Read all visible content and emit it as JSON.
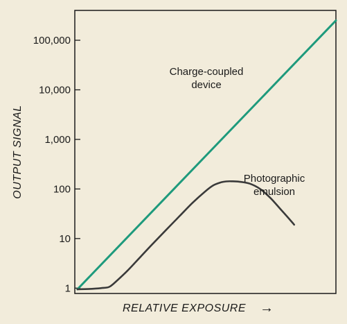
{
  "colors": {
    "background": "#f2ecdb",
    "frame": "#1a1a1a",
    "ccd_line": "#1e9a7c",
    "emulsion_line": "#3a3a3a"
  },
  "chart_data": {
    "type": "line",
    "title": "",
    "xlabel": "RELATIVE EXPOSURE",
    "xlabel_arrow": "→",
    "ylabel": "OUTPUT SIGNAL",
    "y_scale": "log",
    "ylim": [
      0.78,
      400000
    ],
    "xlim": [
      0,
      100
    ],
    "grid": false,
    "legend": "none",
    "y_ticks": [
      {
        "value": 1,
        "label": "1"
      },
      {
        "value": 10,
        "label": "10"
      },
      {
        "value": 100,
        "label": "100"
      },
      {
        "value": 1000,
        "label": "1,000"
      },
      {
        "value": 10000,
        "label": "10,000"
      },
      {
        "value": 100000,
        "label": "100,000"
      }
    ],
    "series": [
      {
        "label": "Charge-coupled\ndevice",
        "color": "#1e9a7c",
        "points": [
          [
            1,
            0.95
          ],
          [
            100,
            250000
          ]
        ]
      },
      {
        "label": "Photographic\nemulsion",
        "color": "#3a3a3a",
        "points": [
          [
            1,
            0.95
          ],
          [
            5,
            0.96
          ],
          [
            10,
            1.0
          ],
          [
            13,
            1.05
          ],
          [
            15,
            1.25
          ],
          [
            20,
            2.2
          ],
          [
            25,
            4.2
          ],
          [
            30,
            8.0
          ],
          [
            35,
            15
          ],
          [
            40,
            28
          ],
          [
            45,
            52
          ],
          [
            50,
            90
          ],
          [
            53,
            118
          ],
          [
            56,
            136
          ],
          [
            58,
            142
          ],
          [
            60,
            143
          ],
          [
            63,
            140
          ],
          [
            67,
            128
          ],
          [
            71,
            100
          ],
          [
            75,
            65
          ],
          [
            79,
            38
          ],
          [
            83,
            22
          ],
          [
            84,
            19
          ]
        ]
      }
    ]
  }
}
